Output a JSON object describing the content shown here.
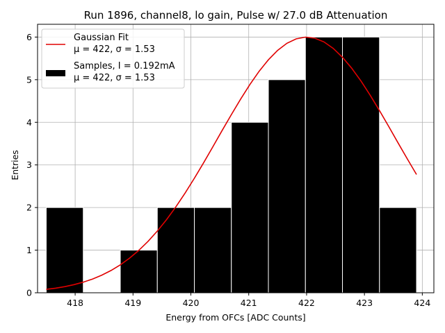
{
  "chart_data": {
    "type": "bar",
    "title": "Run 1896, channel8, lo gain, Pulse w/ 27.0 dB Attenuation",
    "xlabel": "Energy from OFCs [ADC Counts]",
    "ylabel": "Entries",
    "xlim": [
      417.35,
      424.2
    ],
    "ylim": [
      0,
      6.3
    ],
    "xticks": [
      418,
      419,
      420,
      421,
      422,
      423,
      424
    ],
    "yticks": [
      0,
      1,
      2,
      3,
      4,
      5,
      6
    ],
    "grid": true,
    "colors": {
      "bars": "#000000",
      "bar_edge": "#ffffff",
      "fit": "#e00000",
      "grid": "#b0b0b0"
    },
    "histogram": {
      "name": "Samples, I = 0.192mA",
      "stats": "μ = 422, σ = 1.53",
      "bins": [
        {
          "lo": 417.5,
          "hi": 418.14,
          "count": 2
        },
        {
          "lo": 418.14,
          "hi": 418.78,
          "count": 0
        },
        {
          "lo": 418.78,
          "hi": 419.42,
          "count": 1
        },
        {
          "lo": 419.42,
          "hi": 420.06,
          "count": 2
        },
        {
          "lo": 420.06,
          "hi": 420.7,
          "count": 2
        },
        {
          "lo": 420.7,
          "hi": 421.34,
          "count": 4
        },
        {
          "lo": 421.34,
          "hi": 421.98,
          "count": 5
        },
        {
          "lo": 421.98,
          "hi": 422.62,
          "count": 6
        },
        {
          "lo": 422.62,
          "hi": 423.26,
          "count": 6
        },
        {
          "lo": 423.26,
          "hi": 423.9,
          "count": 2
        }
      ]
    },
    "fit": {
      "name": "Gaussian Fit",
      "stats": "μ = 422, σ = 1.53",
      "mu": 422.0,
      "sigma": 1.53,
      "amplitude": 6.0,
      "x_range": [
        417.5,
        423.9
      ]
    },
    "legend_position": "top-left"
  }
}
